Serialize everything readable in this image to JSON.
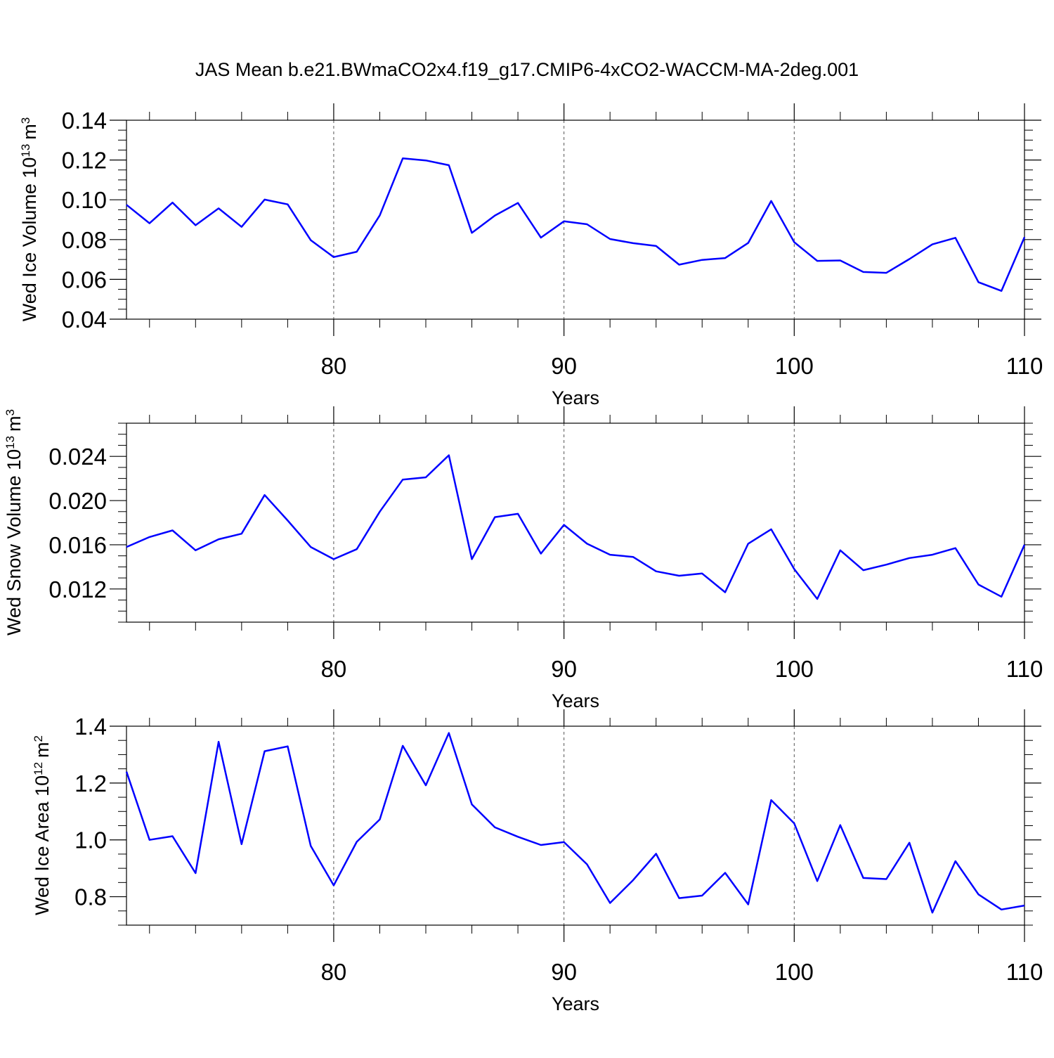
{
  "title": "JAS Mean b.e21.BWmaCO2x4.f19_g17.CMIP6-4xCO2-WACCM-MA-2deg.001",
  "colors": {
    "line": "#0000ff",
    "axis": "#000000",
    "grid": "#555555"
  },
  "chart_data": [
    {
      "type": "line",
      "ylabel": "Wed Ice Volume 10",
      "ylabel_sup": "13",
      "ylabel_unit": "m",
      "ylabel_unit_sup": "3",
      "xlabel": "Years",
      "xlim": [
        71,
        110
      ],
      "ylim": [
        0.04,
        0.14
      ],
      "yticks": [
        0.04,
        0.06,
        0.08,
        0.1,
        0.12,
        0.14
      ],
      "ytick_labels": [
        "0.04",
        "0.06",
        "0.08",
        "0.10",
        "0.12",
        "0.14"
      ],
      "yminor_step": 0.005,
      "xticks": [
        80,
        90,
        100,
        110
      ],
      "xtick_labels": [
        "80",
        "90",
        "100",
        "110"
      ],
      "x": [
        71,
        72,
        73,
        74,
        75,
        76,
        77,
        78,
        79,
        80,
        81,
        82,
        83,
        84,
        85,
        86,
        87,
        88,
        89,
        90,
        91,
        92,
        93,
        94,
        95,
        96,
        97,
        98,
        99,
        100,
        101,
        102,
        103,
        104,
        105,
        106,
        107,
        108,
        109,
        110
      ],
      "series": [
        {
          "name": "ice volume",
          "values": [
            0.0975,
            0.0882,
            0.0986,
            0.0872,
            0.0957,
            0.0864,
            0.1001,
            0.0977,
            0.0797,
            0.0712,
            0.0739,
            0.0922,
            0.1208,
            0.1198,
            0.1174,
            0.0834,
            0.0921,
            0.0984,
            0.081,
            0.0892,
            0.0877,
            0.0803,
            0.0782,
            0.0768,
            0.0674,
            0.0698,
            0.0707,
            0.0783,
            0.0994,
            0.0787,
            0.0693,
            0.0695,
            0.0637,
            0.0633,
            0.0702,
            0.0776,
            0.0809,
            0.0586,
            0.0542,
            0.0812
          ]
        }
      ]
    },
    {
      "type": "line",
      "ylabel": "Wed Snow Volume 10",
      "ylabel_sup": "13",
      "ylabel_unit": "m",
      "ylabel_unit_sup": "3",
      "xlabel": "Years",
      "xlim": [
        71,
        110
      ],
      "ylim": [
        0.009,
        0.027
      ],
      "yticks": [
        0.012,
        0.016,
        0.02,
        0.024
      ],
      "ytick_labels": [
        "0.012",
        "0.016",
        "0.020",
        "0.024"
      ],
      "yminor_step": 0.001,
      "xticks": [
        80,
        90,
        100,
        110
      ],
      "xtick_labels": [
        "80",
        "90",
        "100",
        "110"
      ],
      "x": [
        71,
        72,
        73,
        74,
        75,
        76,
        77,
        78,
        79,
        80,
        81,
        82,
        83,
        84,
        85,
        86,
        87,
        88,
        89,
        90,
        91,
        92,
        93,
        94,
        95,
        96,
        97,
        98,
        99,
        100,
        101,
        102,
        103,
        104,
        105,
        106,
        107,
        108,
        109,
        110
      ],
      "series": [
        {
          "name": "snow volume",
          "values": [
            0.0158,
            0.0167,
            0.0173,
            0.0155,
            0.0165,
            0.017,
            0.0205,
            0.0182,
            0.0158,
            0.0147,
            0.0156,
            0.019,
            0.0219,
            0.0221,
            0.0241,
            0.0147,
            0.0185,
            0.0188,
            0.0152,
            0.0178,
            0.0161,
            0.0151,
            0.0149,
            0.0136,
            0.0132,
            0.0134,
            0.0117,
            0.0161,
            0.0174,
            0.0138,
            0.0111,
            0.0155,
            0.0137,
            0.0142,
            0.0148,
            0.0151,
            0.0157,
            0.0124,
            0.0113,
            0.016
          ]
        }
      ]
    },
    {
      "type": "line",
      "ylabel": "Wed Ice Area 10",
      "ylabel_sup": "12",
      "ylabel_unit": "m",
      "ylabel_unit_sup": "2",
      "xlabel": "Years",
      "xlim": [
        71,
        110
      ],
      "ylim": [
        0.7,
        1.4
      ],
      "yticks": [
        0.8,
        1.0,
        1.2,
        1.4
      ],
      "ytick_labels": [
        "0.8",
        "1.0",
        "1.2",
        "1.4"
      ],
      "yminor_step": 0.05,
      "xticks": [
        80,
        90,
        100,
        110
      ],
      "xtick_labels": [
        "80",
        "90",
        "100",
        "110"
      ],
      "x": [
        71,
        72,
        73,
        74,
        75,
        76,
        77,
        78,
        79,
        80,
        81,
        82,
        83,
        84,
        85,
        86,
        87,
        88,
        89,
        90,
        91,
        92,
        93,
        94,
        95,
        96,
        97,
        98,
        99,
        100,
        101,
        102,
        103,
        104,
        105,
        106,
        107,
        108,
        109,
        110
      ],
      "series": [
        {
          "name": "ice area",
          "values": [
            1.24,
            1.0,
            1.013,
            0.883,
            1.345,
            0.985,
            1.312,
            1.329,
            0.979,
            0.84,
            0.993,
            1.072,
            1.331,
            1.192,
            1.376,
            1.125,
            1.044,
            1.011,
            0.982,
            0.992,
            0.914,
            0.778,
            0.858,
            0.951,
            0.795,
            0.804,
            0.884,
            0.773,
            1.14,
            1.058,
            0.855,
            1.052,
            0.866,
            0.862,
            0.99,
            0.744,
            0.925,
            0.808,
            0.755,
            0.769
          ]
        }
      ]
    }
  ]
}
